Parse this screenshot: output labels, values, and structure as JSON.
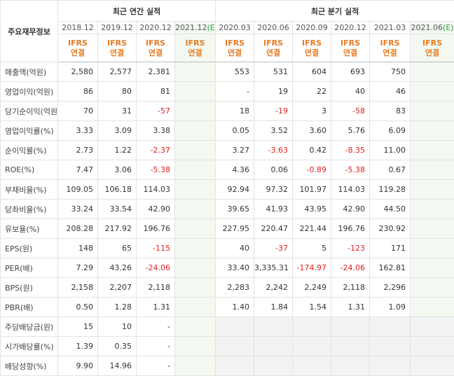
{
  "table": {
    "corner": "주요재무정보",
    "groups": [
      {
        "title": "최근 연간 실적",
        "span": 4
      },
      {
        "title": "최근 분기 실적",
        "span": 6
      }
    ],
    "columns": [
      {
        "date": "2018.12",
        "estimate": null,
        "standard": "IFRS",
        "basis": "연결"
      },
      {
        "date": "2019.12",
        "estimate": null,
        "standard": "IFRS",
        "basis": "연결"
      },
      {
        "date": "2020.12",
        "estimate": null,
        "standard": "IFRS",
        "basis": "연결"
      },
      {
        "date": "2021.12",
        "estimate": "(E)",
        "standard": "IFRS",
        "basis": "연결"
      },
      {
        "date": "2020.03",
        "estimate": null,
        "standard": "IFRS",
        "basis": "연결"
      },
      {
        "date": "2020.06",
        "estimate": null,
        "standard": "IFRS",
        "basis": "연결"
      },
      {
        "date": "2020.09",
        "estimate": null,
        "standard": "IFRS",
        "basis": "연결"
      },
      {
        "date": "2020.12",
        "estimate": null,
        "standard": "IFRS",
        "basis": "연결"
      },
      {
        "date": "2021.03",
        "estimate": null,
        "standard": "IFRS",
        "basis": "연결"
      },
      {
        "date": "2021.06",
        "estimate": "(E)",
        "standard": "IFRS",
        "basis": "연결"
      }
    ],
    "sections": [
      {
        "rows": [
          {
            "label": "매출액(억원)",
            "values": [
              "2,580",
              "2,577",
              "2,381",
              null,
              "553",
              "531",
              "604",
              "693",
              "750",
              null
            ]
          },
          {
            "label": "영업이익(억원)",
            "values": [
              "86",
              "80",
              "81",
              null,
              "-",
              "19",
              "22",
              "40",
              "46",
              null
            ]
          },
          {
            "label": "당기순이익(억원)",
            "values": [
              "70",
              "31",
              "-57",
              null,
              "18",
              "-19",
              "3",
              "-58",
              "83",
              null
            ]
          }
        ]
      },
      {
        "rows": [
          {
            "label": "영업이익률(%)",
            "values": [
              "3.33",
              "3.09",
              "3.38",
              null,
              "0.05",
              "3.52",
              "3.60",
              "5.76",
              "6.09",
              null
            ]
          },
          {
            "label": "순이익률(%)",
            "values": [
              "2.73",
              "1.22",
              "-2.37",
              null,
              "3.27",
              "-3.63",
              "0.42",
              "-8.35",
              "11.00",
              null
            ]
          },
          {
            "label": "ROE(%)",
            "values": [
              "7.47",
              "3.06",
              "-5.38",
              null,
              "4.36",
              "0.06",
              "-0.89",
              "-5.38",
              "0.67",
              null
            ]
          }
        ]
      },
      {
        "rows": [
          {
            "label": "부채비율(%)",
            "values": [
              "109.05",
              "106.18",
              "114.03",
              null,
              "92.94",
              "97.32",
              "101.97",
              "114.03",
              "119.28",
              null
            ]
          },
          {
            "label": "당좌비율(%)",
            "values": [
              "33.24",
              "33.54",
              "42.90",
              null,
              "39.65",
              "41.93",
              "43.95",
              "42.90",
              "44.50",
              null
            ]
          },
          {
            "label": "유보율(%)",
            "values": [
              "208.28",
              "217.92",
              "196.76",
              null,
              "227.95",
              "220.47",
              "221.44",
              "196.76",
              "230.92",
              null
            ]
          }
        ]
      },
      {
        "rows": [
          {
            "label": "EPS(원)",
            "values": [
              "148",
              "65",
              "-115",
              null,
              "40",
              "-37",
              "5",
              "-123",
              "171",
              null
            ]
          },
          {
            "label": "PER(배)",
            "values": [
              "7.29",
              "43.26",
              "-24.06",
              null,
              "33.40",
              "3,335.31",
              "-174.97",
              "-24.06",
              "162.81",
              null
            ]
          },
          {
            "label": "BPS(원)",
            "values": [
              "2,158",
              "2,207",
              "2,118",
              null,
              "2,283",
              "2,242",
              "2,249",
              "2,118",
              "2,296",
              null
            ]
          },
          {
            "label": "PBR(배)",
            "values": [
              "0.50",
              "1.28",
              "1.31",
              null,
              "1.40",
              "1.84",
              "1.54",
              "1.31",
              "1.09",
              null
            ]
          }
        ]
      },
      {
        "closed_quarters": true,
        "rows": [
          {
            "label": "주당배당금(원)",
            "values": [
              "15",
              "10",
              "-",
              null,
              null,
              null,
              null,
              null,
              null,
              null
            ]
          },
          {
            "label": "시가배당률(%)",
            "values": [
              "1.39",
              "0.35",
              "-",
              null,
              null,
              null,
              null,
              null,
              null,
              null
            ]
          },
          {
            "label": "배당성향(%)",
            "values": [
              "9.90",
              "14.96",
              "-",
              null,
              null,
              null,
              null,
              null,
              null,
              null
            ]
          }
        ]
      }
    ]
  }
}
